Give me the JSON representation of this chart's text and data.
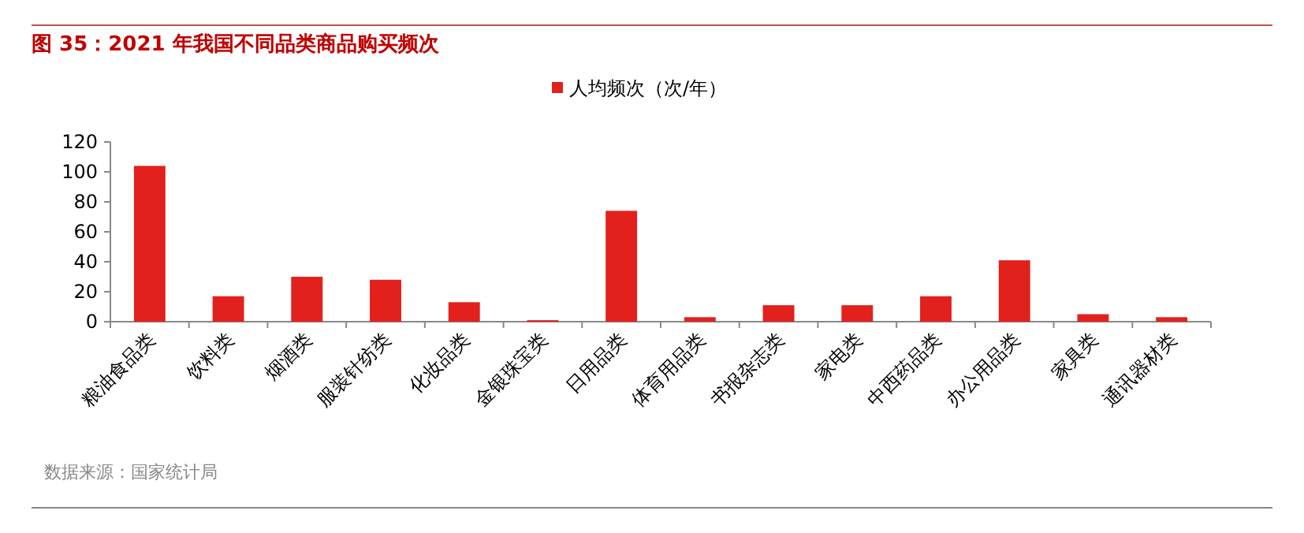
{
  "chart_data": {
    "type": "bar",
    "title": "图 35：2021 年我国不同品类商品购买频次",
    "categories": [
      "粮油食品类",
      "饮料类",
      "烟酒类",
      "服装针纺类",
      "化妆品类",
      "金银珠宝类",
      "日用品类",
      "体育用品类",
      "书报杂志类",
      "家电类",
      "中西药品类",
      "办公用品类",
      "家具类",
      "通讯器材类"
    ],
    "series": [
      {
        "name": "人均频次（次/年）",
        "color": "#e2211c",
        "values": [
          104,
          17,
          30,
          28,
          13,
          1,
          74,
          3,
          11,
          11,
          17,
          41,
          5,
          3
        ]
      }
    ],
    "ylim": [
      0,
      120
    ],
    "yticks": [
      0,
      20,
      40,
      60,
      80,
      100,
      120
    ],
    "grid": false,
    "legend": "top",
    "annotations": [
      "数据来源：国家统计局"
    ]
  }
}
